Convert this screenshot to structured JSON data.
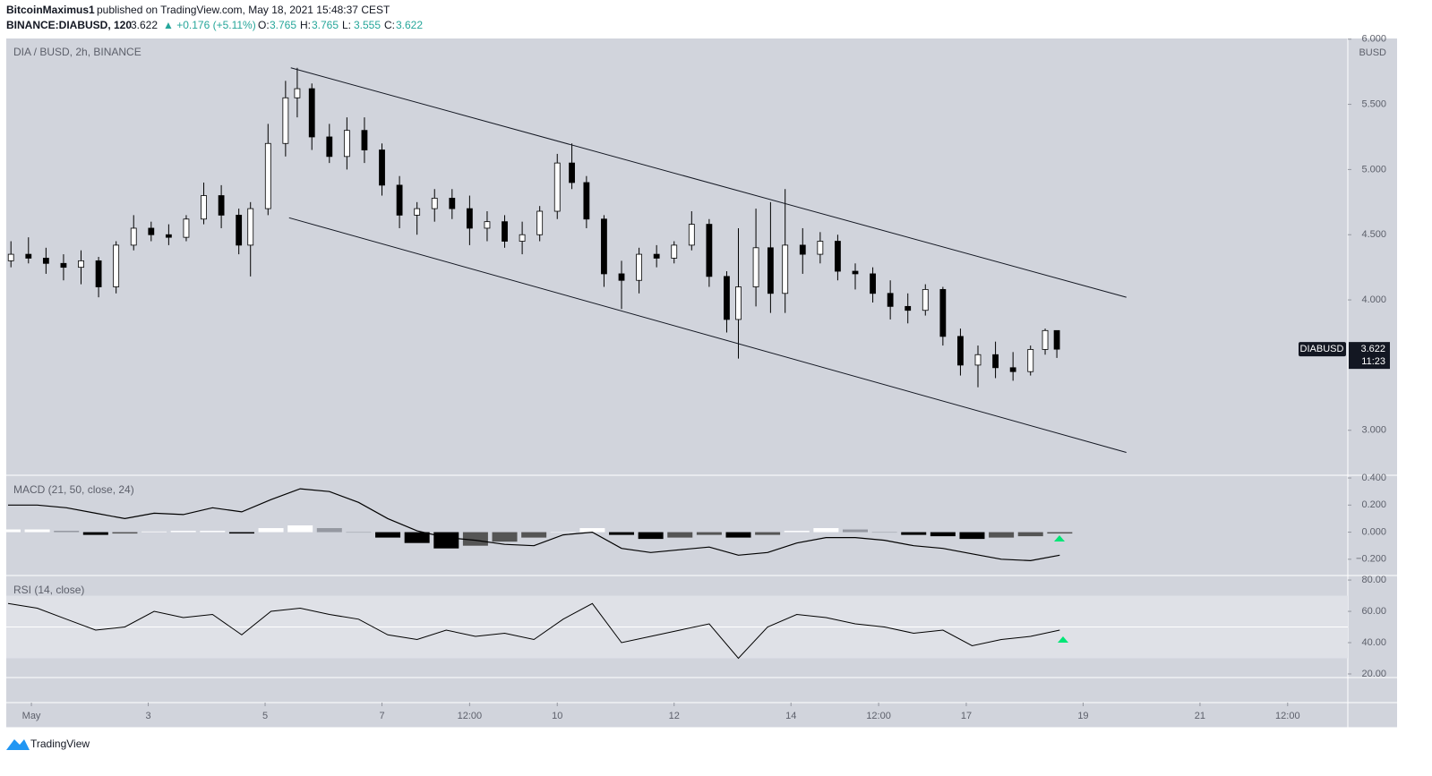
{
  "header": {
    "author": "BitcoinMaximus1",
    "published": "published on TradingView.com, May 18, 2021 15:48:37 CEST",
    "symbol": "BINANCE:DIABUSD, 120",
    "last": "3.622",
    "change": "▲ +0.176 (+5.11%)",
    "ohlc": [
      {
        "label": "O:",
        "value": "3.765"
      },
      {
        "label": "H:",
        "value": "3.765"
      },
      {
        "label": "L:",
        "value": "3.555"
      },
      {
        "label": "C:",
        "value": "3.622"
      }
    ]
  },
  "footer": {
    "brand": "TradingView"
  },
  "chart_data": [
    {
      "type": "candlestick",
      "title": "DIA / BUSD, 2h, BINANCE",
      "y_axis_label": "BUSD",
      "x": [
        0.65,
        0.95,
        1.25,
        1.55,
        1.85,
        2.15,
        2.45,
        2.75,
        3.05,
        3.35,
        3.65,
        3.95,
        4.25,
        4.55,
        4.75,
        5.05,
        5.35,
        5.55,
        5.8,
        6.1,
        6.4,
        6.7,
        7.0,
        7.3,
        7.6,
        7.9,
        8.2,
        8.5,
        8.8,
        9.1,
        9.4,
        9.7,
        10.0,
        10.25,
        10.5,
        10.8,
        11.1,
        11.4,
        11.7,
        12.0,
        12.3,
        12.6,
        12.9,
        13.1,
        13.4,
        13.65,
        13.9,
        14.2,
        14.5,
        14.8,
        15.1,
        15.4,
        15.7,
        16.0,
        16.3,
        16.6,
        16.9,
        17.2,
        17.5,
        17.8,
        18.1,
        18.35,
        18.55
      ],
      "open": [
        4.3,
        4.35,
        4.32,
        4.28,
        4.25,
        4.3,
        4.1,
        4.42,
        4.55,
        4.5,
        4.48,
        4.62,
        4.8,
        4.65,
        4.42,
        4.7,
        5.2,
        5.55,
        5.62,
        5.25,
        5.1,
        5.3,
        5.15,
        4.88,
        4.65,
        4.7,
        4.78,
        4.7,
        4.55,
        4.6,
        4.45,
        4.5,
        4.68,
        5.05,
        4.9,
        4.62,
        4.2,
        4.15,
        4.35,
        4.32,
        4.42,
        4.58,
        4.18,
        3.85,
        4.1,
        4.4,
        4.05,
        4.42,
        4.35,
        4.45,
        4.22,
        4.2,
        4.05,
        3.95,
        3.92,
        4.08,
        3.72,
        3.5,
        3.58,
        3.48,
        3.45,
        3.62,
        3.765
      ],
      "high": [
        4.45,
        4.48,
        4.4,
        4.35,
        4.38,
        4.33,
        4.45,
        4.65,
        4.6,
        4.58,
        4.65,
        4.9,
        4.88,
        4.7,
        4.75,
        5.35,
        5.68,
        5.78,
        5.66,
        5.35,
        5.4,
        5.4,
        5.2,
        4.95,
        4.75,
        4.85,
        4.85,
        4.8,
        4.68,
        4.65,
        4.6,
        4.72,
        5.12,
        5.2,
        4.95,
        4.65,
        4.3,
        4.4,
        4.42,
        4.45,
        4.68,
        4.62,
        4.22,
        4.55,
        4.7,
        4.75,
        4.85,
        4.55,
        4.52,
        4.5,
        4.28,
        4.25,
        4.15,
        4.05,
        4.12,
        4.1,
        3.78,
        3.65,
        3.68,
        3.6,
        3.65,
        3.78,
        3.765
      ],
      "low": [
        4.25,
        4.28,
        4.2,
        4.15,
        4.12,
        4.02,
        4.05,
        4.38,
        4.45,
        4.42,
        4.45,
        4.58,
        4.55,
        4.35,
        4.18,
        4.65,
        5.1,
        5.4,
        5.15,
        5.05,
        5.0,
        5.05,
        4.8,
        4.55,
        4.5,
        4.6,
        4.62,
        4.42,
        4.45,
        4.4,
        4.35,
        4.45,
        4.62,
        4.85,
        4.55,
        4.1,
        3.93,
        4.05,
        4.25,
        4.28,
        4.38,
        4.1,
        3.75,
        3.55,
        3.95,
        3.9,
        3.9,
        4.2,
        4.28,
        4.15,
        4.08,
        3.98,
        3.85,
        3.82,
        3.88,
        3.65,
        3.42,
        3.33,
        3.4,
        3.38,
        3.42,
        3.58,
        3.555
      ],
      "close": [
        4.35,
        4.32,
        4.28,
        4.25,
        4.3,
        4.1,
        4.42,
        4.55,
        4.5,
        4.48,
        4.62,
        4.8,
        4.65,
        4.42,
        4.7,
        5.2,
        5.55,
        5.62,
        5.25,
        5.1,
        5.3,
        5.15,
        4.88,
        4.65,
        4.7,
        4.78,
        4.7,
        4.55,
        4.6,
        4.45,
        4.5,
        4.68,
        5.05,
        4.9,
        4.62,
        4.2,
        4.15,
        4.35,
        4.32,
        4.42,
        4.58,
        4.18,
        3.85,
        4.1,
        4.4,
        4.05,
        4.42,
        4.35,
        4.45,
        4.22,
        4.2,
        4.05,
        3.95,
        3.92,
        4.08,
        3.72,
        3.5,
        3.58,
        3.48,
        3.45,
        3.62,
        3.765,
        3.622
      ],
      "up_color": "#ffffff",
      "down_color": "#000000",
      "wick_color": "#000000",
      "background": "#d1d4dc",
      "xlim": [
        0.57,
        23.53
      ],
      "xticks": [
        {
          "value": 1,
          "label": "May"
        },
        3,
        5,
        7,
        {
          "value": 8.5,
          "label": "12:00"
        },
        10,
        12,
        14,
        {
          "value": 15.5,
          "label": "12:00"
        },
        17,
        19,
        21,
        {
          "value": 22.5,
          "label": "12:00"
        }
      ],
      "ylim": [
        2.655,
        6.005
      ],
      "yticks": [
        {
          "value": 6,
          "label": "6.000"
        },
        {
          "value": 5.5,
          "label": "5.500"
        },
        {
          "value": 5,
          "label": "5.000"
        },
        {
          "value": 4.5,
          "label": "4.500"
        },
        {
          "value": 4,
          "label": "4.000"
        },
        {
          "value": 3,
          "label": "3.000"
        }
      ],
      "trendlines": [
        {
          "x": [
            5.44,
            19.74
          ],
          "y": [
            5.78,
            4.02
          ]
        },
        {
          "x": [
            5.41,
            19.74
          ],
          "y": [
            4.63,
            2.83
          ]
        }
      ],
      "price_label": {
        "symbol": "DIABUSD",
        "value": 3.622,
        "countdown": "11:23"
      }
    },
    {
      "type": "macd",
      "title": "MACD (21, 50, close, 24)",
      "x": [
        0.6,
        1.1,
        1.6,
        2.1,
        2.6,
        3.1,
        3.6,
        4.1,
        4.6,
        5.1,
        5.6,
        6.1,
        6.6,
        7.1,
        7.6,
        8.1,
        8.6,
        9.1,
        9.6,
        10.1,
        10.6,
        11.1,
        11.6,
        12.1,
        12.6,
        13.1,
        13.6,
        14.1,
        14.6,
        15.1,
        15.6,
        16.1,
        16.6,
        17.1,
        17.6,
        18.1,
        18.6
      ],
      "macd_line": [
        0.2,
        0.2,
        0.18,
        0.14,
        0.1,
        0.14,
        0.13,
        0.18,
        0.15,
        0.24,
        0.32,
        0.3,
        0.22,
        0.1,
        0.01,
        -0.04,
        -0.06,
        -0.09,
        -0.1,
        -0.02,
        0.0,
        -0.12,
        -0.15,
        -0.13,
        -0.11,
        -0.17,
        -0.15,
        -0.08,
        -0.04,
        -0.04,
        -0.06,
        -0.1,
        -0.12,
        -0.16,
        -0.2,
        -0.21,
        -0.17
      ],
      "histogram": [
        0.02,
        0.02,
        0.01,
        -0.02,
        -0.01,
        0.005,
        0.01,
        0.01,
        -0.01,
        0.03,
        0.05,
        0.03,
        0.0,
        -0.04,
        -0.08,
        -0.12,
        -0.1,
        -0.07,
        -0.04,
        0.0,
        0.03,
        -0.02,
        -0.05,
        -0.04,
        -0.02,
        -0.04,
        -0.02,
        0.01,
        0.03,
        0.02,
        0.0,
        -0.02,
        -0.03,
        -0.05,
        -0.04,
        -0.03,
        -0.01
      ],
      "line_color": "#000000",
      "histogram_colors": {
        "up_rising": "#ffffff",
        "up_falling": "#9598a1",
        "down_falling": "#000000",
        "down_rising": "#555555"
      },
      "ylim": [
        -0.32,
        0.42
      ],
      "yticks": [
        {
          "value": 0.4,
          "label": "0.400"
        },
        {
          "value": 0.2,
          "label": "0.200"
        },
        {
          "value": 0,
          "label": "0.000"
        },
        {
          "value": -0.2,
          "label": "−0.200"
        }
      ]
    },
    {
      "type": "line",
      "title": "RSI (14, close)",
      "x": [
        0.6,
        1.1,
        1.6,
        2.1,
        2.6,
        3.1,
        3.6,
        4.1,
        4.6,
        5.1,
        5.6,
        6.1,
        6.6,
        7.1,
        7.6,
        8.1,
        8.6,
        9.1,
        9.6,
        10.1,
        10.6,
        11.1,
        11.6,
        12.1,
        12.6,
        13.1,
        13.6,
        14.1,
        14.6,
        15.1,
        15.6,
        16.1,
        16.6,
        17.1,
        17.6,
        18.1,
        18.6
      ],
      "values": [
        65,
        62,
        55,
        48,
        50,
        60,
        56,
        58,
        45,
        60,
        62,
        58,
        55,
        45,
        42,
        48,
        44,
        46,
        42,
        55,
        65,
        40,
        44,
        48,
        52,
        30,
        50,
        58,
        56,
        52,
        50,
        46,
        48,
        38,
        42,
        44,
        48
      ],
      "color": "#000000",
      "bands": [
        30,
        70
      ],
      "midline": 50,
      "ylim": [
        17.7,
        82.9
      ],
      "yticks": [
        {
          "value": 80,
          "label": "80.00"
        },
        {
          "value": 60,
          "label": "60.00"
        },
        {
          "value": 40,
          "label": "40.00"
        },
        {
          "value": 20,
          "label": "20.00"
        }
      ]
    }
  ]
}
